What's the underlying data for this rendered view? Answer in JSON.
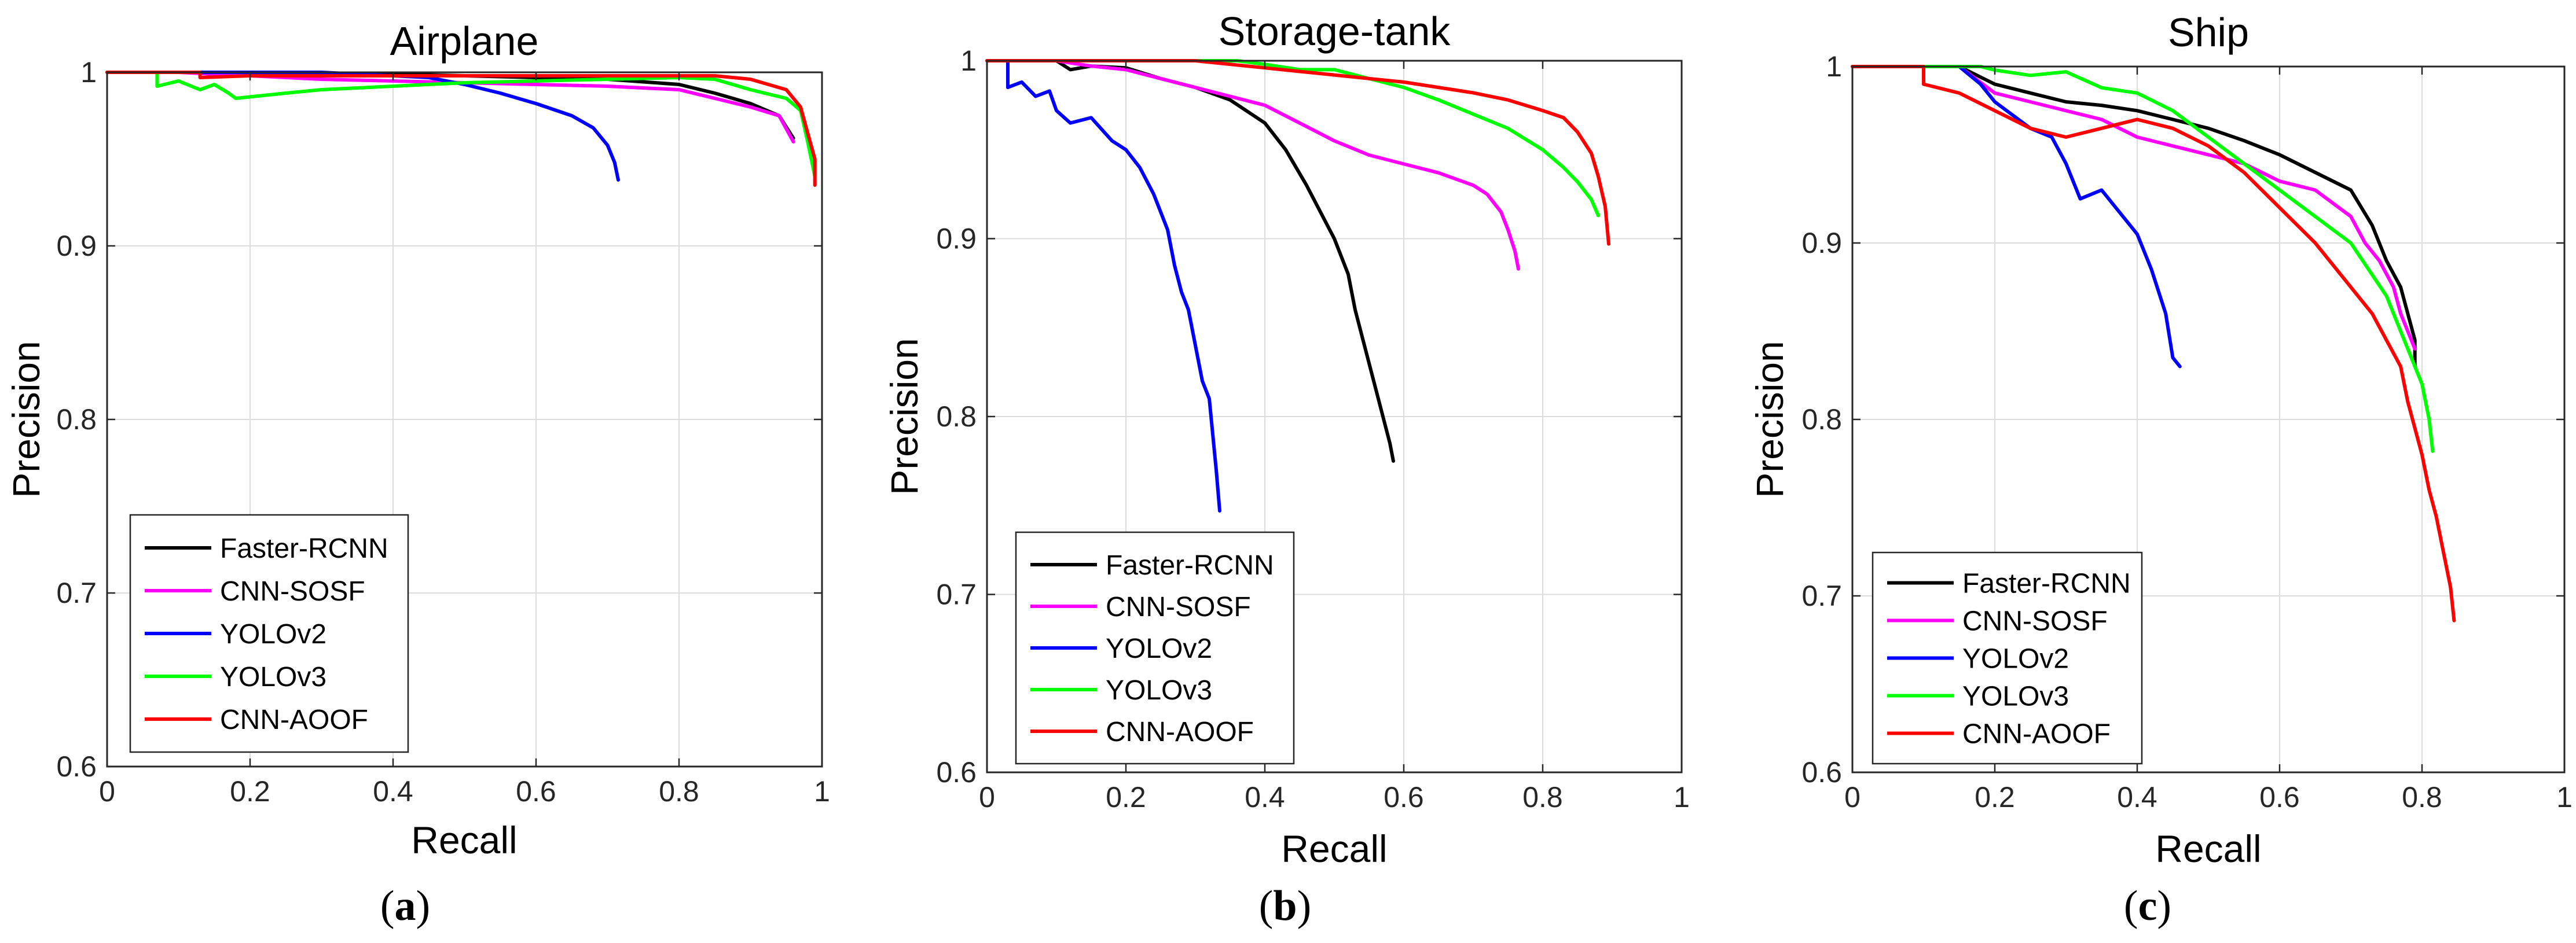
{
  "figure": {
    "panel_labels": [
      {
        "open": "(",
        "letter": "a",
        "close": ")"
      },
      {
        "open": "(",
        "letter": "b",
        "close": ")"
      },
      {
        "open": "(",
        "letter": "c",
        "close": ")"
      }
    ]
  },
  "series_styles": [
    {
      "name": "Faster-RCNN",
      "color": "#000000"
    },
    {
      "name": "CNN-SOSF",
      "color": "#ff00ff"
    },
    {
      "name": "YOLOv2",
      "color": "#0000ff"
    },
    {
      "name": "YOLOv3",
      "color": "#00ff00"
    },
    {
      "name": "CNN-AOOF",
      "color": "#ff0000"
    }
  ],
  "chart_data": [
    {
      "type": "line",
      "title": "Airplane",
      "xlabel": "Recall",
      "ylabel": "Precision",
      "xlim": [
        0,
        1
      ],
      "ylim": [
        0.6,
        1
      ],
      "xticks": [
        "0",
        "0.2",
        "0.4",
        "0.6",
        "0.8",
        "1"
      ],
      "yticks": [
        "0.6",
        "0.7",
        "0.8",
        "0.9",
        "1"
      ],
      "grid": true,
      "legend_position": "bottom-left",
      "series": [
        {
          "name": "Faster-RCNN",
          "x": [
            0,
            0.1,
            0.2,
            0.3,
            0.4,
            0.5,
            0.6,
            0.7,
            0.8,
            0.85,
            0.9,
            0.94,
            0.96
          ],
          "y": [
            1,
            1,
            1,
            0.999,
            0.999,
            0.998,
            0.997,
            0.996,
            0.993,
            0.988,
            0.982,
            0.975,
            0.962
          ]
        },
        {
          "name": "CNN-SOSF",
          "x": [
            0,
            0.1,
            0.2,
            0.3,
            0.4,
            0.5,
            0.6,
            0.7,
            0.8,
            0.85,
            0.9,
            0.94,
            0.96
          ],
          "y": [
            1,
            1,
            0.998,
            0.996,
            0.995,
            0.994,
            0.993,
            0.992,
            0.99,
            0.985,
            0.98,
            0.975,
            0.96
          ]
        },
        {
          "name": "YOLOv2",
          "x": [
            0,
            0.1,
            0.2,
            0.3,
            0.4,
            0.45,
            0.5,
            0.55,
            0.6,
            0.65,
            0.68,
            0.7,
            0.71,
            0.715
          ],
          "y": [
            1,
            1,
            1,
            1,
            0.998,
            0.997,
            0.993,
            0.988,
            0.982,
            0.975,
            0.968,
            0.958,
            0.948,
            0.938
          ]
        },
        {
          "name": "YOLOv3",
          "x": [
            0,
            0.07,
            0.07,
            0.1,
            0.13,
            0.15,
            0.17,
            0.18,
            0.25,
            0.3,
            0.4,
            0.5,
            0.6,
            0.7,
            0.8,
            0.85,
            0.9,
            0.95,
            0.97,
            0.98,
            0.99
          ],
          "y": [
            1,
            1,
            0.992,
            0.995,
            0.99,
            0.993,
            0.988,
            0.985,
            0.988,
            0.99,
            0.992,
            0.994,
            0.995,
            0.996,
            0.997,
            0.996,
            0.99,
            0.985,
            0.978,
            0.96,
            0.94
          ]
        },
        {
          "name": "CNN-AOOF",
          "x": [
            0,
            0.13,
            0.13,
            0.2,
            0.3,
            0.4,
            0.5,
            0.6,
            0.7,
            0.8,
            0.85,
            0.9,
            0.95,
            0.97,
            0.98,
            0.99,
            0.99
          ],
          "y": [
            1,
            1,
            0.997,
            0.998,
            0.998,
            0.998,
            0.998,
            0.998,
            0.998,
            0.998,
            0.998,
            0.996,
            0.99,
            0.98,
            0.965,
            0.95,
            0.935
          ]
        }
      ]
    },
    {
      "type": "line",
      "title": "Storage-tank",
      "xlabel": "Recall",
      "ylabel": "Precision",
      "xlim": [
        0,
        1
      ],
      "ylim": [
        0.6,
        1
      ],
      "xticks": [
        "0",
        "0.2",
        "0.4",
        "0.6",
        "0.8",
        "1"
      ],
      "yticks": [
        "0.6",
        "0.7",
        "0.8",
        "0.9",
        "1"
      ],
      "grid": true,
      "legend_position": "bottom-left",
      "series": [
        {
          "name": "Faster-RCNN",
          "x": [
            0,
            0.1,
            0.12,
            0.15,
            0.2,
            0.25,
            0.3,
            0.35,
            0.4,
            0.43,
            0.46,
            0.48,
            0.5,
            0.52,
            0.53,
            0.55,
            0.56,
            0.57,
            0.58,
            0.585
          ],
          "y": [
            1,
            1,
            0.995,
            0.997,
            0.996,
            0.99,
            0.985,
            0.978,
            0.965,
            0.95,
            0.93,
            0.915,
            0.9,
            0.88,
            0.86,
            0.83,
            0.815,
            0.8,
            0.785,
            0.775
          ]
        },
        {
          "name": "CNN-SOSF",
          "x": [
            0,
            0.1,
            0.15,
            0.2,
            0.25,
            0.3,
            0.35,
            0.4,
            0.45,
            0.5,
            0.55,
            0.6,
            0.65,
            0.7,
            0.72,
            0.74,
            0.75,
            0.76,
            0.765
          ],
          "y": [
            1,
            1,
            0.997,
            0.995,
            0.99,
            0.985,
            0.98,
            0.975,
            0.965,
            0.955,
            0.947,
            0.942,
            0.937,
            0.93,
            0.925,
            0.915,
            0.905,
            0.893,
            0.883
          ]
        },
        {
          "name": "YOLOv2",
          "x": [
            0,
            0.03,
            0.03,
            0.05,
            0.07,
            0.09,
            0.1,
            0.12,
            0.15,
            0.18,
            0.2,
            0.22,
            0.24,
            0.26,
            0.27,
            0.28,
            0.29,
            0.3,
            0.31,
            0.32,
            0.325,
            0.33,
            0.335
          ],
          "y": [
            1,
            1,
            0.985,
            0.988,
            0.98,
            0.983,
            0.972,
            0.965,
            0.968,
            0.955,
            0.95,
            0.94,
            0.925,
            0.905,
            0.885,
            0.87,
            0.86,
            0.84,
            0.82,
            0.81,
            0.79,
            0.77,
            0.747
          ]
        },
        {
          "name": "YOLOv3",
          "x": [
            0,
            0.2,
            0.3,
            0.36,
            0.4,
            0.45,
            0.5,
            0.55,
            0.6,
            0.65,
            0.7,
            0.75,
            0.8,
            0.83,
            0.85,
            0.87,
            0.88
          ],
          "y": [
            1,
            1,
            1,
            1,
            0.998,
            0.995,
            0.995,
            0.99,
            0.985,
            0.978,
            0.97,
            0.962,
            0.95,
            0.94,
            0.932,
            0.922,
            0.913
          ]
        },
        {
          "name": "CNN-AOOF",
          "x": [
            0,
            0.2,
            0.3,
            0.4,
            0.45,
            0.5,
            0.55,
            0.6,
            0.65,
            0.7,
            0.75,
            0.8,
            0.83,
            0.85,
            0.87,
            0.88,
            0.89,
            0.895
          ],
          "y": [
            1,
            1,
            1,
            0.996,
            0.994,
            0.992,
            0.99,
            0.988,
            0.985,
            0.982,
            0.978,
            0.972,
            0.968,
            0.96,
            0.948,
            0.935,
            0.918,
            0.897
          ]
        }
      ]
    },
    {
      "type": "line",
      "title": "Ship",
      "xlabel": "Recall",
      "ylabel": "Precision",
      "xlim": [
        0,
        1
      ],
      "ylim": [
        0.6,
        1
      ],
      "xticks": [
        "0",
        "0.2",
        "0.4",
        "0.6",
        "0.8",
        "1"
      ],
      "yticks": [
        "0.6",
        "0.7",
        "0.8",
        "0.9",
        "1"
      ],
      "grid": true,
      "legend_position": "bottom-left",
      "series": [
        {
          "name": "Faster-RCNN",
          "x": [
            0,
            0.15,
            0.2,
            0.25,
            0.3,
            0.35,
            0.4,
            0.45,
            0.5,
            0.55,
            0.6,
            0.65,
            0.7,
            0.73,
            0.75,
            0.77,
            0.78,
            0.79,
            0.79
          ],
          "y": [
            1,
            1,
            0.99,
            0.985,
            0.98,
            0.978,
            0.975,
            0.97,
            0.965,
            0.958,
            0.95,
            0.94,
            0.93,
            0.91,
            0.89,
            0.875,
            0.86,
            0.845,
            0.83
          ]
        },
        {
          "name": "CNN-SOSF",
          "x": [
            0,
            0.15,
            0.2,
            0.25,
            0.3,
            0.35,
            0.4,
            0.45,
            0.5,
            0.55,
            0.6,
            0.65,
            0.7,
            0.72,
            0.74,
            0.76,
            0.77,
            0.78,
            0.79
          ],
          "y": [
            1,
            1,
            0.985,
            0.98,
            0.975,
            0.97,
            0.96,
            0.955,
            0.95,
            0.945,
            0.935,
            0.93,
            0.915,
            0.9,
            0.89,
            0.875,
            0.86,
            0.85,
            0.84
          ]
        },
        {
          "name": "YOLOv2",
          "x": [
            0,
            0.15,
            0.18,
            0.2,
            0.25,
            0.28,
            0.3,
            0.32,
            0.35,
            0.38,
            0.4,
            0.42,
            0.44,
            0.45,
            0.46
          ],
          "y": [
            1,
            1,
            0.99,
            0.98,
            0.965,
            0.96,
            0.945,
            0.925,
            0.93,
            0.915,
            0.905,
            0.885,
            0.86,
            0.835,
            0.83
          ]
        },
        {
          "name": "YOLOv3",
          "x": [
            0,
            0.18,
            0.2,
            0.25,
            0.3,
            0.35,
            0.4,
            0.45,
            0.5,
            0.55,
            0.6,
            0.65,
            0.7,
            0.75,
            0.78,
            0.8,
            0.81,
            0.815
          ],
          "y": [
            1,
            1,
            0.998,
            0.995,
            0.997,
            0.988,
            0.985,
            0.975,
            0.96,
            0.945,
            0.93,
            0.915,
            0.9,
            0.87,
            0.84,
            0.82,
            0.8,
            0.782
          ]
        },
        {
          "name": "CNN-AOOF",
          "x": [
            0,
            0.1,
            0.1,
            0.15,
            0.2,
            0.25,
            0.3,
            0.35,
            0.4,
            0.45,
            0.5,
            0.55,
            0.6,
            0.65,
            0.7,
            0.73,
            0.75,
            0.77,
            0.78,
            0.8,
            0.81,
            0.82,
            0.83,
            0.84,
            0.845
          ],
          "y": [
            1,
            1,
            0.99,
            0.985,
            0.975,
            0.965,
            0.96,
            0.965,
            0.97,
            0.965,
            0.955,
            0.94,
            0.92,
            0.9,
            0.875,
            0.86,
            0.845,
            0.83,
            0.81,
            0.78,
            0.76,
            0.745,
            0.725,
            0.705,
            0.686
          ]
        }
      ]
    }
  ]
}
